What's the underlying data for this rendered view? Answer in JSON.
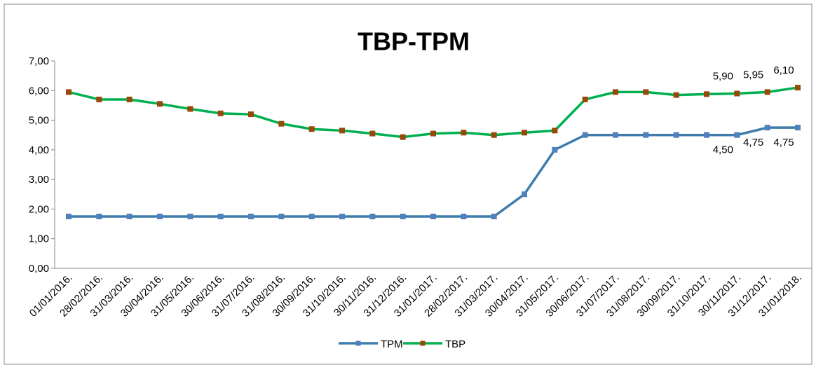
{
  "chart_data": {
    "type": "line",
    "title": "TBP-TPM",
    "categories": [
      "01/01/2016.",
      "28/02/2016.",
      "31/03/2016.",
      "30/04/2016.",
      "31/05/2016.",
      "30/06/2016.",
      "31/07/2016.",
      "31/08/2016.",
      "30/09/2016.",
      "31/10/2016.",
      "30/11/2016.",
      "31/12/2016.",
      "31/01/2017.",
      "28/02/2017.",
      "31/03/2017.",
      "30/04/2017.",
      "31/05/2017.",
      "30/06/2017.",
      "31/07/2017.",
      "31/08/2017.",
      "30/09/2017.",
      "31/10/2017.",
      "30/11/2017.",
      "31/12/2017.",
      "31/01/2018."
    ],
    "series": [
      {
        "name": "TPM",
        "color": "#3f7cac",
        "marker_color": "#4f81bd",
        "values": [
          1.75,
          1.75,
          1.75,
          1.75,
          1.75,
          1.75,
          1.75,
          1.75,
          1.75,
          1.75,
          1.75,
          1.75,
          1.75,
          1.75,
          1.75,
          2.5,
          4.0,
          4.5,
          4.5,
          4.5,
          4.5,
          4.5,
          4.5,
          4.75,
          4.75
        ],
        "value_labels": [
          null,
          null,
          null,
          null,
          null,
          null,
          null,
          null,
          null,
          null,
          null,
          null,
          null,
          null,
          null,
          null,
          null,
          null,
          null,
          null,
          null,
          null,
          "4,50",
          "4,75",
          "4,75"
        ]
      },
      {
        "name": "TBP",
        "color": "#00b050",
        "marker_color": "#984807",
        "values": [
          5.95,
          5.7,
          5.7,
          5.55,
          5.38,
          5.23,
          5.2,
          4.88,
          4.7,
          4.65,
          4.55,
          4.43,
          4.55,
          4.58,
          4.5,
          4.58,
          4.65,
          5.7,
          5.95,
          5.95,
          5.85,
          5.88,
          5.9,
          5.95,
          6.1
        ],
        "value_labels": [
          null,
          null,
          null,
          null,
          null,
          null,
          null,
          null,
          null,
          null,
          null,
          null,
          null,
          null,
          null,
          null,
          null,
          null,
          null,
          null,
          null,
          null,
          "5,90",
          "5,95",
          "6,10"
        ]
      }
    ],
    "ylim": [
      0,
      7
    ],
    "yticks": [
      {
        "value": 0,
        "label": "0,00"
      },
      {
        "value": 1,
        "label": "1,00"
      },
      {
        "value": 2,
        "label": "2,00"
      },
      {
        "value": 3,
        "label": "3,00"
      },
      {
        "value": 4,
        "label": "4,00"
      },
      {
        "value": 5,
        "label": "5,00"
      },
      {
        "value": 6,
        "label": "6,00"
      },
      {
        "value": 7,
        "label": "7,00"
      }
    ],
    "grid": false,
    "legend": "bottom"
  }
}
